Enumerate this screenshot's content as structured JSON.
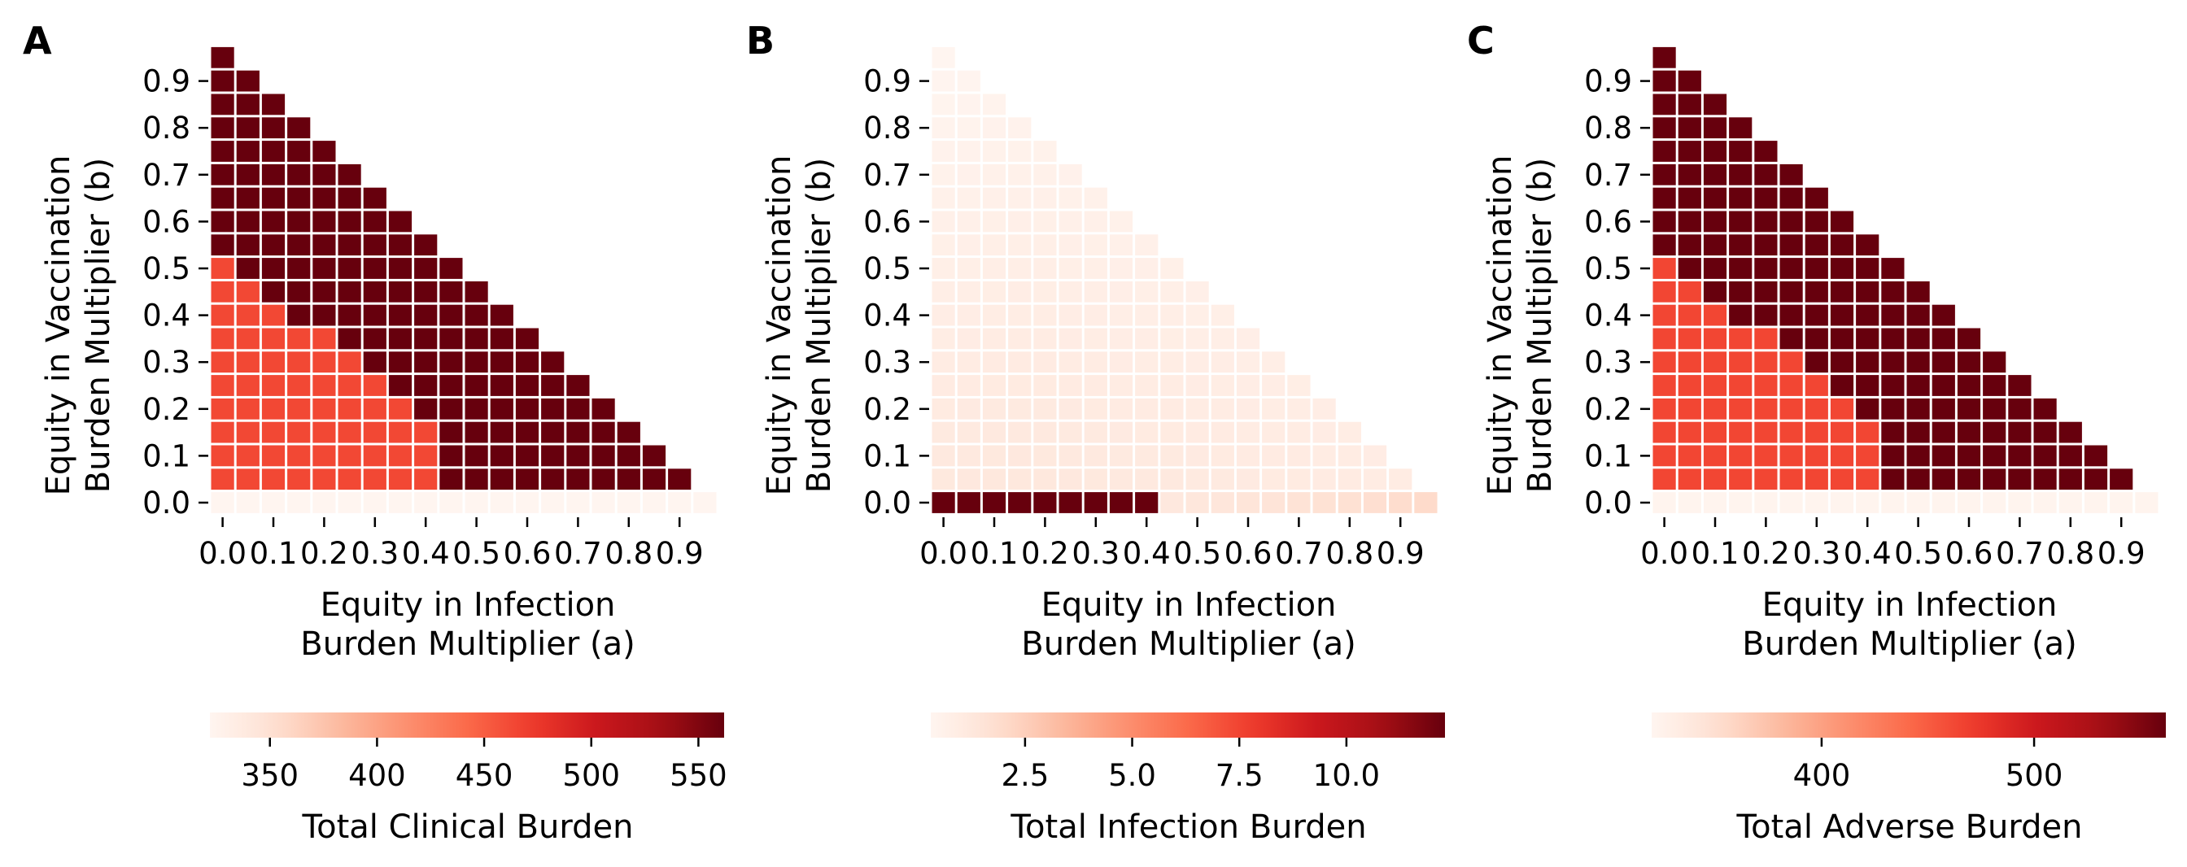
{
  "chart_data": [
    {
      "type": "heatmap",
      "panel": "A",
      "xlabel": [
        "Equity in Infection",
        "Burden Multiplier (a)"
      ],
      "ylabel": [
        "Equity in Vaccination",
        "Burden Multiplier (b)"
      ],
      "x_tick_labels": [
        "0.0",
        "0.1",
        "0.2",
        "0.3",
        "0.4",
        "0.5",
        "0.6",
        "0.7",
        "0.8",
        "0.9"
      ],
      "y_tick_labels": [
        "0.0",
        "0.1",
        "0.2",
        "0.3",
        "0.4",
        "0.5",
        "0.6",
        "0.7",
        "0.8",
        "0.9"
      ],
      "colormap": "Reds",
      "colorbar": {
        "label": "Total Clinical Burden",
        "ticks": [
          350,
          400,
          450,
          500,
          550
        ],
        "tick_labels": [
          "350",
          "400",
          "450",
          "500",
          "550"
        ],
        "range": [
          322,
          562
        ]
      },
      "regimes": {
        "low": 322,
        "mid": 464,
        "high": 562,
        "edge_a": 0.43,
        "edge_slope": 1.2
      },
      "grid_step": 0.05
    },
    {
      "type": "heatmap",
      "panel": "B",
      "xlabel": [
        "Equity in Infection",
        "Burden Multiplier (a)"
      ],
      "ylabel": [
        "Equity in Vaccination",
        "Burden Multiplier (b)"
      ],
      "x_tick_labels": [
        "0.0",
        "0.1",
        "0.2",
        "0.3",
        "0.4",
        "0.5",
        "0.6",
        "0.7",
        "0.8",
        "0.9"
      ],
      "y_tick_labels": [
        "0.0",
        "0.1",
        "0.2",
        "0.3",
        "0.4",
        "0.5",
        "0.6",
        "0.7",
        "0.8",
        "0.9"
      ],
      "colormap": "Reds",
      "colorbar": {
        "label": "Total Infection Burden",
        "ticks": [
          2.5,
          5.0,
          7.5,
          10.0
        ],
        "tick_labels": [
          "2.5",
          "5.0",
          "7.5",
          "10.0"
        ],
        "range": [
          0.3,
          12.3
        ]
      },
      "regimes": {
        "bottom_left": 12.3,
        "bottom_right_start": 1.2,
        "bottom_right_end": 2.0,
        "upper_base": 1.3,
        "upper_min": 0.3
      },
      "grid_step": 0.05
    },
    {
      "type": "heatmap",
      "panel": "C",
      "xlabel": [
        "Equity in Infection",
        "Burden Multiplier (a)"
      ],
      "ylabel": [
        "Equity in Vaccination",
        "Burden Multiplier (b)"
      ],
      "x_tick_labels": [
        "0.0",
        "0.1",
        "0.2",
        "0.3",
        "0.4",
        "0.5",
        "0.6",
        "0.7",
        "0.8",
        "0.9"
      ],
      "y_tick_labels": [
        "0.0",
        "0.1",
        "0.2",
        "0.3",
        "0.4",
        "0.5",
        "0.6",
        "0.7",
        "0.8",
        "0.9"
      ],
      "colormap": "Reds",
      "colorbar": {
        "label": "Total Adverse Burden",
        "ticks": [
          400,
          500
        ],
        "tick_labels": [
          "400",
          "500"
        ],
        "range": [
          320,
          562
        ]
      },
      "regimes": {
        "low": 322,
        "mid": 464,
        "high": 562,
        "edge_a": 0.43,
        "edge_slope": 1.2
      },
      "grid_step": 0.05
    }
  ]
}
